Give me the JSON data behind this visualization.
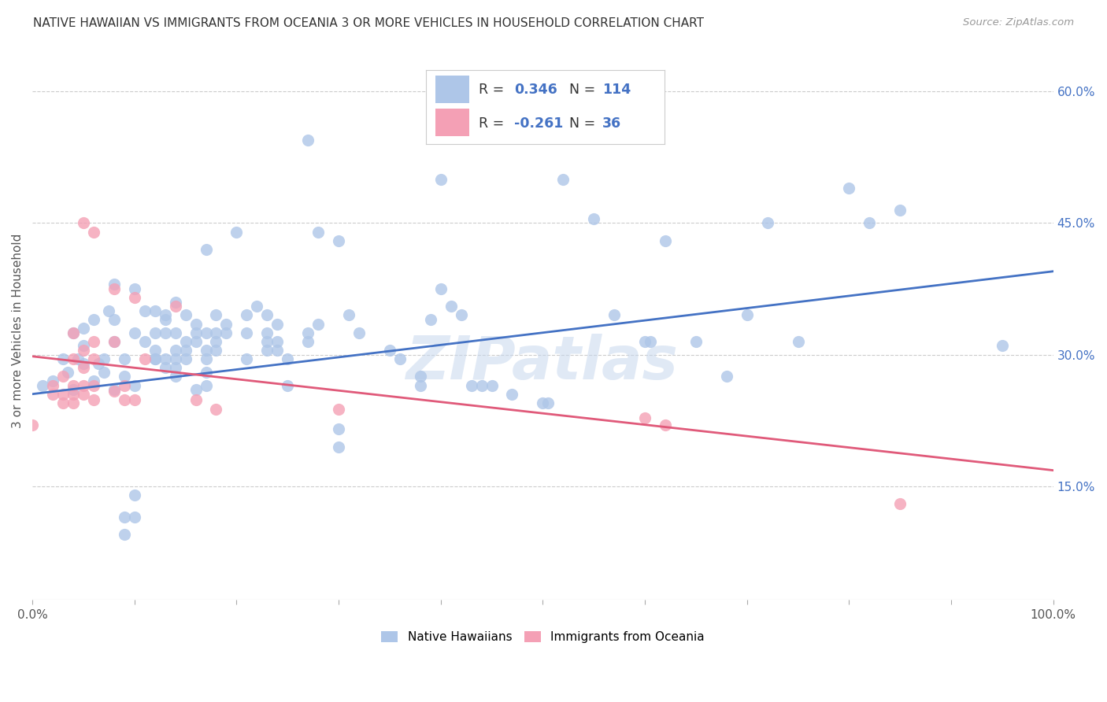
{
  "title": "NATIVE HAWAIIAN VS IMMIGRANTS FROM OCEANIA 3 OR MORE VEHICLES IN HOUSEHOLD CORRELATION CHART",
  "source": "Source: ZipAtlas.com",
  "ylabel_label": "3 or more Vehicles in Household",
  "right_yticks": [
    "15.0%",
    "30.0%",
    "45.0%",
    "60.0%"
  ],
  "right_ytick_vals": [
    0.15,
    0.3,
    0.45,
    0.6
  ],
  "xmin": 0.0,
  "xmax": 1.0,
  "ymin": 0.02,
  "ymax": 0.635,
  "r_blue": "0.346",
  "n_blue": "114",
  "r_pink": "-0.261",
  "n_pink": "36",
  "color_blue": "#aec6e8",
  "color_pink": "#f4a0b5",
  "line_blue": "#4472c4",
  "line_pink": "#e05a7a",
  "watermark": "ZIPatlas",
  "text_color_blue": "#4472c4",
  "text_color_dark": "#333333",
  "blue_line_y0": 0.255,
  "blue_line_y1": 0.395,
  "pink_line_y0": 0.298,
  "pink_line_y1": 0.168,
  "blue_dots": [
    [
      0.01,
      0.265
    ],
    [
      0.02,
      0.27
    ],
    [
      0.03,
      0.295
    ],
    [
      0.035,
      0.28
    ],
    [
      0.04,
      0.26
    ],
    [
      0.04,
      0.325
    ],
    [
      0.045,
      0.295
    ],
    [
      0.05,
      0.29
    ],
    [
      0.05,
      0.31
    ],
    [
      0.05,
      0.33
    ],
    [
      0.06,
      0.27
    ],
    [
      0.06,
      0.34
    ],
    [
      0.065,
      0.29
    ],
    [
      0.07,
      0.295
    ],
    [
      0.07,
      0.28
    ],
    [
      0.075,
      0.35
    ],
    [
      0.08,
      0.38
    ],
    [
      0.08,
      0.34
    ],
    [
      0.08,
      0.26
    ],
    [
      0.08,
      0.315
    ],
    [
      0.09,
      0.095
    ],
    [
      0.09,
      0.115
    ],
    [
      0.09,
      0.295
    ],
    [
      0.09,
      0.275
    ],
    [
      0.1,
      0.375
    ],
    [
      0.1,
      0.325
    ],
    [
      0.1,
      0.265
    ],
    [
      0.1,
      0.115
    ],
    [
      0.1,
      0.14
    ],
    [
      0.11,
      0.35
    ],
    [
      0.11,
      0.315
    ],
    [
      0.12,
      0.295
    ],
    [
      0.12,
      0.35
    ],
    [
      0.12,
      0.325
    ],
    [
      0.12,
      0.305
    ],
    [
      0.12,
      0.295
    ],
    [
      0.13,
      0.34
    ],
    [
      0.13,
      0.345
    ],
    [
      0.13,
      0.325
    ],
    [
      0.13,
      0.295
    ],
    [
      0.13,
      0.285
    ],
    [
      0.14,
      0.36
    ],
    [
      0.14,
      0.325
    ],
    [
      0.14,
      0.305
    ],
    [
      0.14,
      0.295
    ],
    [
      0.14,
      0.285
    ],
    [
      0.14,
      0.275
    ],
    [
      0.15,
      0.345
    ],
    [
      0.15,
      0.315
    ],
    [
      0.15,
      0.305
    ],
    [
      0.15,
      0.295
    ],
    [
      0.16,
      0.335
    ],
    [
      0.16,
      0.325
    ],
    [
      0.16,
      0.315
    ],
    [
      0.16,
      0.26
    ],
    [
      0.17,
      0.42
    ],
    [
      0.17,
      0.325
    ],
    [
      0.17,
      0.305
    ],
    [
      0.17,
      0.28
    ],
    [
      0.17,
      0.265
    ],
    [
      0.17,
      0.295
    ],
    [
      0.18,
      0.345
    ],
    [
      0.18,
      0.325
    ],
    [
      0.18,
      0.315
    ],
    [
      0.18,
      0.305
    ],
    [
      0.19,
      0.335
    ],
    [
      0.19,
      0.325
    ],
    [
      0.2,
      0.44
    ],
    [
      0.21,
      0.345
    ],
    [
      0.21,
      0.325
    ],
    [
      0.21,
      0.295
    ],
    [
      0.22,
      0.355
    ],
    [
      0.23,
      0.345
    ],
    [
      0.23,
      0.325
    ],
    [
      0.23,
      0.315
    ],
    [
      0.23,
      0.305
    ],
    [
      0.24,
      0.335
    ],
    [
      0.24,
      0.315
    ],
    [
      0.24,
      0.305
    ],
    [
      0.25,
      0.295
    ],
    [
      0.25,
      0.265
    ],
    [
      0.27,
      0.545
    ],
    [
      0.27,
      0.325
    ],
    [
      0.27,
      0.315
    ],
    [
      0.28,
      0.44
    ],
    [
      0.28,
      0.335
    ],
    [
      0.3,
      0.43
    ],
    [
      0.3,
      0.215
    ],
    [
      0.3,
      0.195
    ],
    [
      0.31,
      0.345
    ],
    [
      0.32,
      0.325
    ],
    [
      0.35,
      0.305
    ],
    [
      0.36,
      0.295
    ],
    [
      0.38,
      0.275
    ],
    [
      0.38,
      0.265
    ],
    [
      0.39,
      0.34
    ],
    [
      0.4,
      0.5
    ],
    [
      0.4,
      0.375
    ],
    [
      0.41,
      0.355
    ],
    [
      0.42,
      0.345
    ],
    [
      0.43,
      0.265
    ],
    [
      0.44,
      0.265
    ],
    [
      0.45,
      0.265
    ],
    [
      0.47,
      0.255
    ],
    [
      0.5,
      0.245
    ],
    [
      0.505,
      0.245
    ],
    [
      0.52,
      0.5
    ],
    [
      0.55,
      0.455
    ],
    [
      0.57,
      0.345
    ],
    [
      0.6,
      0.315
    ],
    [
      0.605,
      0.315
    ],
    [
      0.62,
      0.43
    ],
    [
      0.65,
      0.315
    ],
    [
      0.68,
      0.275
    ],
    [
      0.7,
      0.345
    ],
    [
      0.72,
      0.45
    ],
    [
      0.75,
      0.315
    ],
    [
      0.8,
      0.49
    ],
    [
      0.82,
      0.45
    ],
    [
      0.85,
      0.465
    ],
    [
      0.95,
      0.31
    ]
  ],
  "pink_dots": [
    [
      0.0,
      0.22
    ],
    [
      0.02,
      0.255
    ],
    [
      0.02,
      0.265
    ],
    [
      0.03,
      0.275
    ],
    [
      0.03,
      0.255
    ],
    [
      0.03,
      0.245
    ],
    [
      0.04,
      0.325
    ],
    [
      0.04,
      0.295
    ],
    [
      0.04,
      0.265
    ],
    [
      0.04,
      0.255
    ],
    [
      0.04,
      0.245
    ],
    [
      0.05,
      0.45
    ],
    [
      0.05,
      0.305
    ],
    [
      0.05,
      0.285
    ],
    [
      0.05,
      0.265
    ],
    [
      0.05,
      0.255
    ],
    [
      0.06,
      0.44
    ],
    [
      0.06,
      0.315
    ],
    [
      0.06,
      0.295
    ],
    [
      0.06,
      0.265
    ],
    [
      0.06,
      0.248
    ],
    [
      0.08,
      0.375
    ],
    [
      0.08,
      0.315
    ],
    [
      0.08,
      0.258
    ],
    [
      0.09,
      0.265
    ],
    [
      0.09,
      0.248
    ],
    [
      0.1,
      0.365
    ],
    [
      0.1,
      0.248
    ],
    [
      0.11,
      0.295
    ],
    [
      0.14,
      0.355
    ],
    [
      0.16,
      0.248
    ],
    [
      0.18,
      0.238
    ],
    [
      0.3,
      0.238
    ],
    [
      0.6,
      0.228
    ],
    [
      0.62,
      0.22
    ],
    [
      0.85,
      0.13
    ]
  ]
}
